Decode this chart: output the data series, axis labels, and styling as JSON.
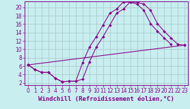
{
  "background_color": "#c8eef0",
  "grid_color": "#aacccc",
  "line_color": "#880088",
  "marker_color": "#880088",
  "xlabel": "Windchill (Refroidissement éolien,°C)",
  "xlim": [
    -0.5,
    23.5
  ],
  "ylim": [
    1.5,
    21.5
  ],
  "yticks": [
    2,
    4,
    6,
    8,
    10,
    12,
    14,
    16,
    18,
    20
  ],
  "xticks": [
    0,
    1,
    2,
    3,
    4,
    5,
    6,
    7,
    8,
    9,
    10,
    11,
    12,
    13,
    14,
    15,
    16,
    17,
    18,
    19,
    20,
    21,
    22,
    23
  ],
  "line1_x": [
    0,
    1,
    2,
    3,
    4,
    5,
    6,
    7,
    8,
    9,
    10,
    11,
    12,
    13,
    14,
    15,
    16,
    17,
    18,
    19,
    20,
    21
  ],
  "line1_y": [
    6.3,
    5.2,
    4.5,
    4.5,
    3.1,
    2.3,
    2.4,
    2.4,
    6.8,
    10.5,
    13.0,
    15.8,
    18.6,
    19.6,
    21.3,
    21.2,
    20.8,
    19.3,
    16.1,
    14.3,
    12.7,
    11.2
  ],
  "line2_x": [
    0,
    1,
    2,
    3,
    4,
    5,
    6,
    7,
    8,
    9,
    10,
    11,
    12,
    13,
    14,
    15,
    16,
    17,
    18,
    19,
    20,
    21,
    22,
    23
  ],
  "line2_y": [
    6.3,
    5.2,
    4.5,
    4.5,
    3.1,
    2.3,
    2.4,
    2.4,
    2.9,
    7.0,
    10.5,
    13.0,
    15.8,
    18.6,
    19.6,
    21.3,
    21.2,
    20.8,
    19.3,
    16.1,
    14.3,
    12.7,
    11.2,
    11.0
  ],
  "line3_x": [
    0,
    23
  ],
  "line3_y": [
    6.3,
    11.0
  ],
  "font_size_xlabel": 6.5,
  "font_size_ticks": 5.5
}
